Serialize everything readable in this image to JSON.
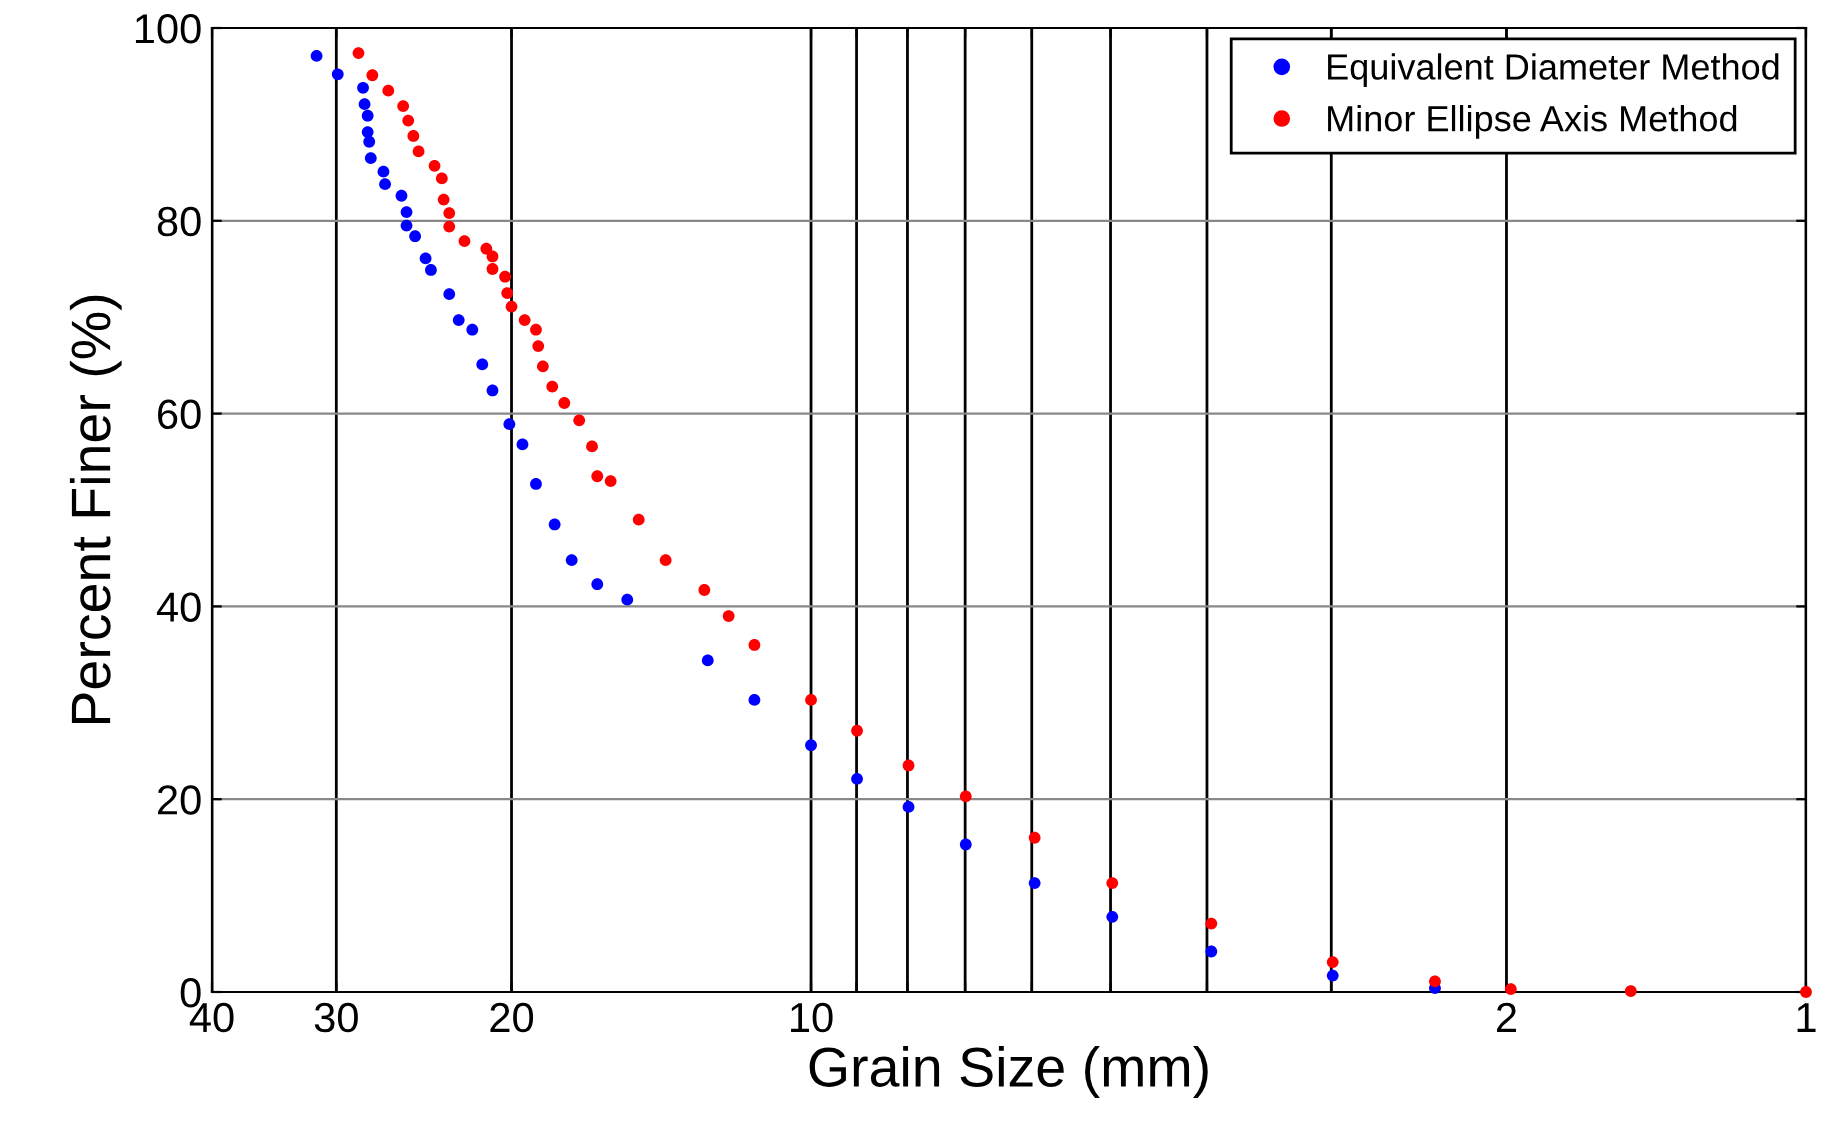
{
  "chart_data": {
    "type": "scatter",
    "xlabel": "Grain Size (mm)",
    "ylabel": "Percent Finer (%)",
    "log": "x",
    "xlim": [
      40,
      1
    ],
    "ylim": [
      0,
      100
    ],
    "xticks": [
      40,
      30,
      20,
      10,
      {
        "value": 9,
        "label": null
      },
      {
        "value": 8,
        "label": null
      },
      {
        "value": 7,
        "label": null
      },
      {
        "value": 6,
        "label": null
      },
      {
        "value": 5,
        "label": null
      },
      {
        "value": 4,
        "label": null
      },
      {
        "value": 3,
        "label": null
      },
      2,
      1
    ],
    "yticks": [
      0,
      20,
      40,
      60,
      80,
      100
    ],
    "grid": true,
    "legend": "top right",
    "marker": "circle",
    "series": [
      {
        "name": "Equivalent Diameter Method",
        "color": "#0000ff",
        "x": [
          31.4,
          29.9,
          28.2,
          28.1,
          27.9,
          27.9,
          27.8,
          27.7,
          26.9,
          26.8,
          25.8,
          25.5,
          25.5,
          25.0,
          24.4,
          24.1,
          23.1,
          22.6,
          21.9,
          21.4,
          20.9,
          20.1,
          19.5,
          18.9,
          18.1,
          17.4,
          16.4,
          15.3,
          12.7,
          11.4,
          10.0,
          8.99,
          7.98,
          6.99,
          5.96,
          4.98,
          3.96,
          2.99,
          2.36
        ],
        "values": [
          97.1,
          95.2,
          93.8,
          92.1,
          90.9,
          89.2,
          88.2,
          86.5,
          85.1,
          83.8,
          82.6,
          80.9,
          79.5,
          78.4,
          76.1,
          74.9,
          72.4,
          69.7,
          68.7,
          65.1,
          62.4,
          58.9,
          56.8,
          52.7,
          48.5,
          44.8,
          42.3,
          40.7,
          34.4,
          30.3,
          25.6,
          22.1,
          19.2,
          15.3,
          11.3,
          7.8,
          4.2,
          1.7,
          0.4
        ]
      },
      {
        "name": "Minor Ellipse Axis Method",
        "color": "#ff0000",
        "x": [
          28.5,
          27.6,
          26.6,
          25.7,
          25.4,
          25.1,
          24.8,
          23.9,
          23.5,
          23.4,
          23.1,
          23.1,
          22.3,
          21.2,
          20.9,
          20.9,
          20.3,
          20.2,
          20.0,
          19.4,
          18.9,
          18.8,
          18.6,
          18.2,
          17.7,
          17.1,
          16.6,
          16.4,
          15.9,
          14.9,
          14.0,
          12.8,
          12.1,
          11.4,
          10.0,
          8.99,
          7.98,
          6.99,
          5.96,
          4.98,
          3.96,
          2.99,
          2.36,
          1.98,
          1.5,
          1.0
        ],
        "values": [
          97.4,
          95.1,
          93.5,
          91.9,
          90.4,
          88.8,
          87.2,
          85.7,
          84.4,
          82.2,
          80.8,
          79.4,
          77.9,
          77.1,
          76.3,
          75.0,
          74.2,
          72.5,
          71.1,
          69.7,
          68.7,
          67.0,
          64.9,
          62.8,
          61.1,
          59.3,
          56.6,
          53.5,
          53.0,
          49.0,
          44.8,
          41.7,
          39.0,
          36.0,
          30.3,
          27.1,
          23.5,
          20.3,
          16.0,
          11.3,
          7.1,
          3.1,
          1.1,
          0.3,
          0.1,
          0
        ]
      }
    ]
  }
}
